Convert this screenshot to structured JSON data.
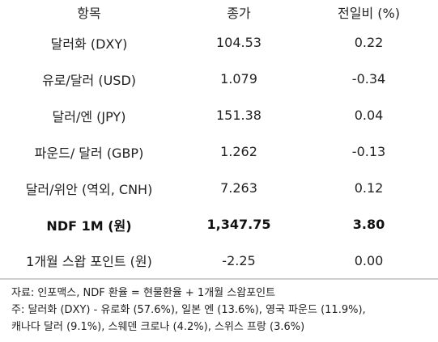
{
  "table": {
    "headers": [
      "항목",
      "종가",
      "전일비 (%)"
    ],
    "rows": [
      {
        "name": "달러화 (DXY)",
        "close": "104.53",
        "change": "0.22"
      },
      {
        "name": "유로/달러 (USD)",
        "close": "1.079",
        "change": "-0.34"
      },
      {
        "name": "달러/엔 (JPY)",
        "close": "151.38",
        "change": "0.04"
      },
      {
        "name": "파운드/ 달러 (GBP)",
        "close": "1.262",
        "change": "-0.13"
      },
      {
        "name": "달러/위안 (역외, CNH)",
        "close": "7.263",
        "change": "0.12"
      },
      {
        "name": "NDF 1M (원)",
        "close": "1,347.75",
        "change": "3.80"
      },
      {
        "name": "1개월 스왑 포인트 (원)",
        "close": "-2.25",
        "change": "0.00"
      }
    ]
  },
  "notes": {
    "source": "자료: 인포맥스, NDF 환율 = 현물환율 + 1개월 스왑포인트",
    "note_line1": "주: 달러화 (DXY) - 유로화 (57.6%), 일본 엔 (13.6%), 영국 파운드 (11.9%),",
    "note_line2": "캐나다 달러 (9.1%), 스웨덴 크로나 (4.2%), 스위스 프랑 (3.6%)"
  }
}
